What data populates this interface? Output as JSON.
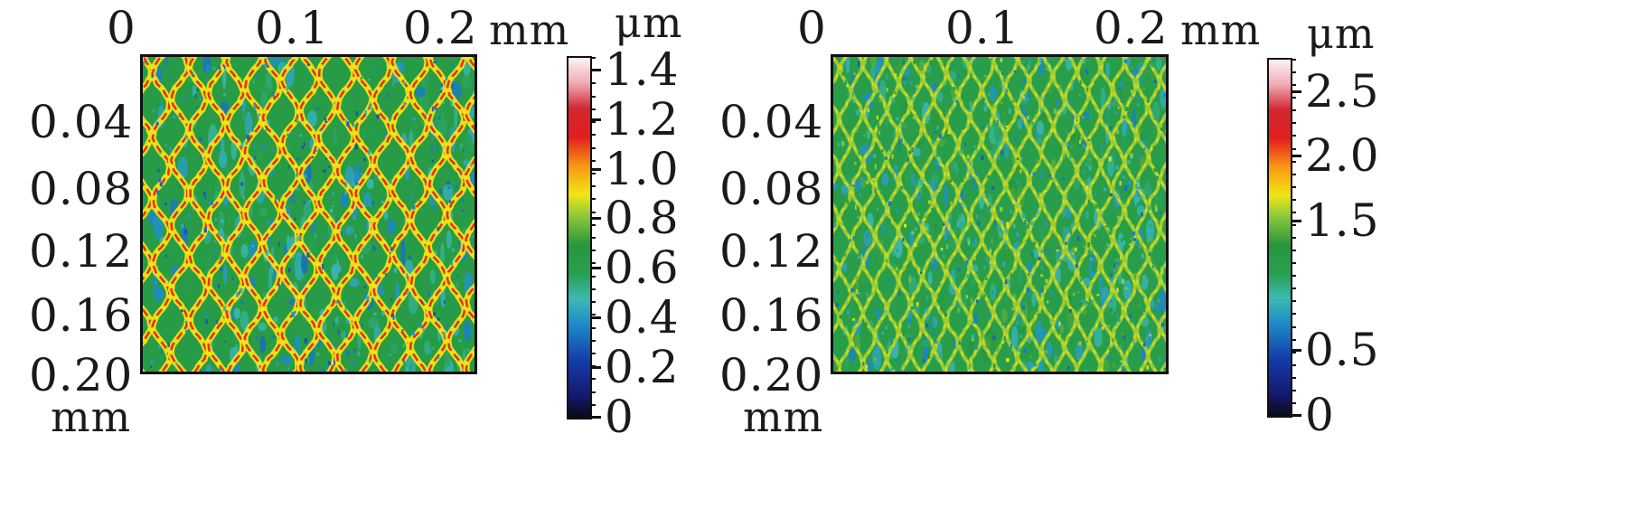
{
  "chart_data": [
    {
      "type": "heatmap",
      "x_ticks": [
        "0",
        "0.1",
        "0.2"
      ],
      "x_unit": "mm",
      "y_ticks": [
        "0.04",
        "0.08",
        "0.12",
        "0.16",
        "0.20"
      ],
      "y_unit": "mm",
      "x_range": [
        0,
        0.23
      ],
      "y_range": [
        0,
        0.2
      ],
      "colorbar": {
        "unit": "μm",
        "ticks": [
          "0",
          "0.2",
          "0.4",
          "0.6",
          "0.8",
          "1.0",
          "1.2",
          "1.4"
        ],
        "range": [
          0,
          1.45
        ]
      },
      "pattern": "fish-scale network of raised ridges (≈0.8–1.2 μm) over a ~0.6 μm background with ~0.2–0.4 μm pits"
    },
    {
      "type": "heatmap",
      "x_ticks": [
        "0",
        "0.1",
        "0.2"
      ],
      "x_unit": "mm",
      "y_ticks": [
        "0.04",
        "0.08",
        "0.12",
        "0.16",
        "0.20"
      ],
      "y_unit": "mm",
      "x_range": [
        0,
        0.23
      ],
      "y_range": [
        0,
        0.2
      ],
      "colorbar": {
        "unit": "μm",
        "ticks": [
          "0",
          "0.5",
          "1.5",
          "2.0",
          "2.5"
        ],
        "range": [
          0,
          2.75
        ]
      },
      "pattern": "finer fish-scale ridge network (≈1.5–2.0 μm) over a ~1.0–1.5 μm background with scattered low spots"
    }
  ]
}
